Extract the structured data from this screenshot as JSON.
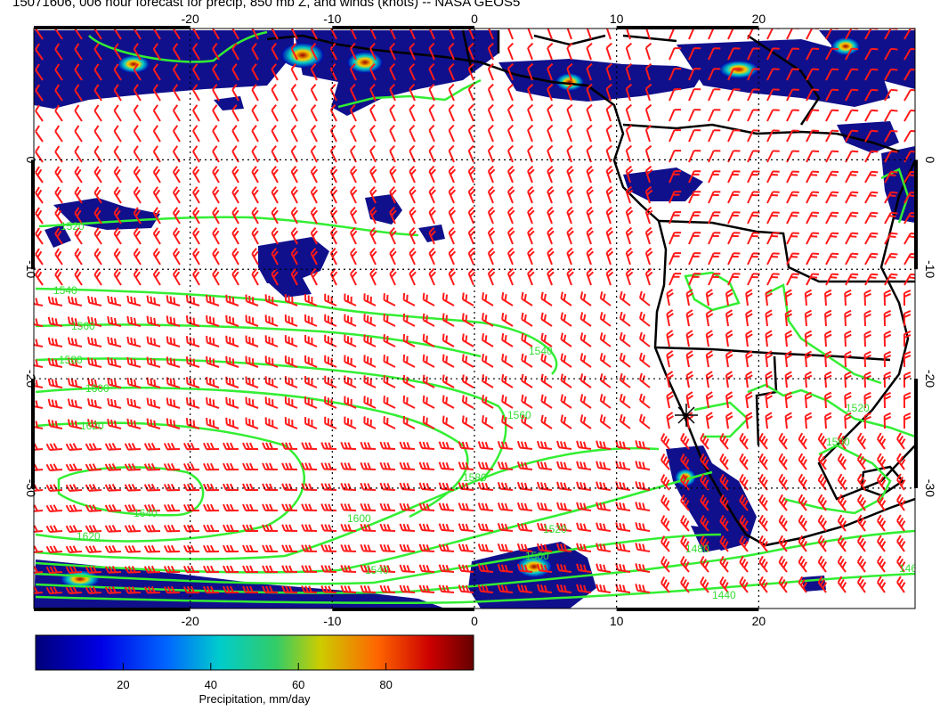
{
  "title": "15071606, 006 hour forecast for precip, 850 mb Z, and winds (knots) -- NASA GEOS5",
  "map": {
    "lon_range": [
      -31,
      31
    ],
    "lat_range": [
      -41,
      12
    ],
    "grid_lons": [
      -20,
      -10,
      0,
      10,
      20
    ],
    "grid_lats": [
      0,
      -10,
      -20,
      -30
    ],
    "lon_tick_labels": [
      "-20",
      "-10",
      "0",
      "10",
      "20"
    ],
    "lat_tick_labels": [
      "0",
      "-10",
      "-20",
      "-30"
    ],
    "contour_color": "#33ee33",
    "barb_color": "#ff1a1a",
    "coast_color": "#000000"
  },
  "contour_labels": [
    "1520",
    "1540",
    "1560",
    "1580",
    "1600",
    "1620",
    "1640",
    "1620",
    "1600",
    "1580",
    "1560",
    "1540",
    "1520",
    "1500",
    "1480",
    "1460",
    "1440",
    "1540",
    "1520",
    "1500"
  ],
  "colorbar": {
    "label": "Precipitation, mm/day",
    "ticks": [
      "20",
      "40",
      "60",
      "80"
    ],
    "tick_values": [
      20,
      40,
      60,
      80
    ],
    "range": [
      0,
      100
    ]
  }
}
